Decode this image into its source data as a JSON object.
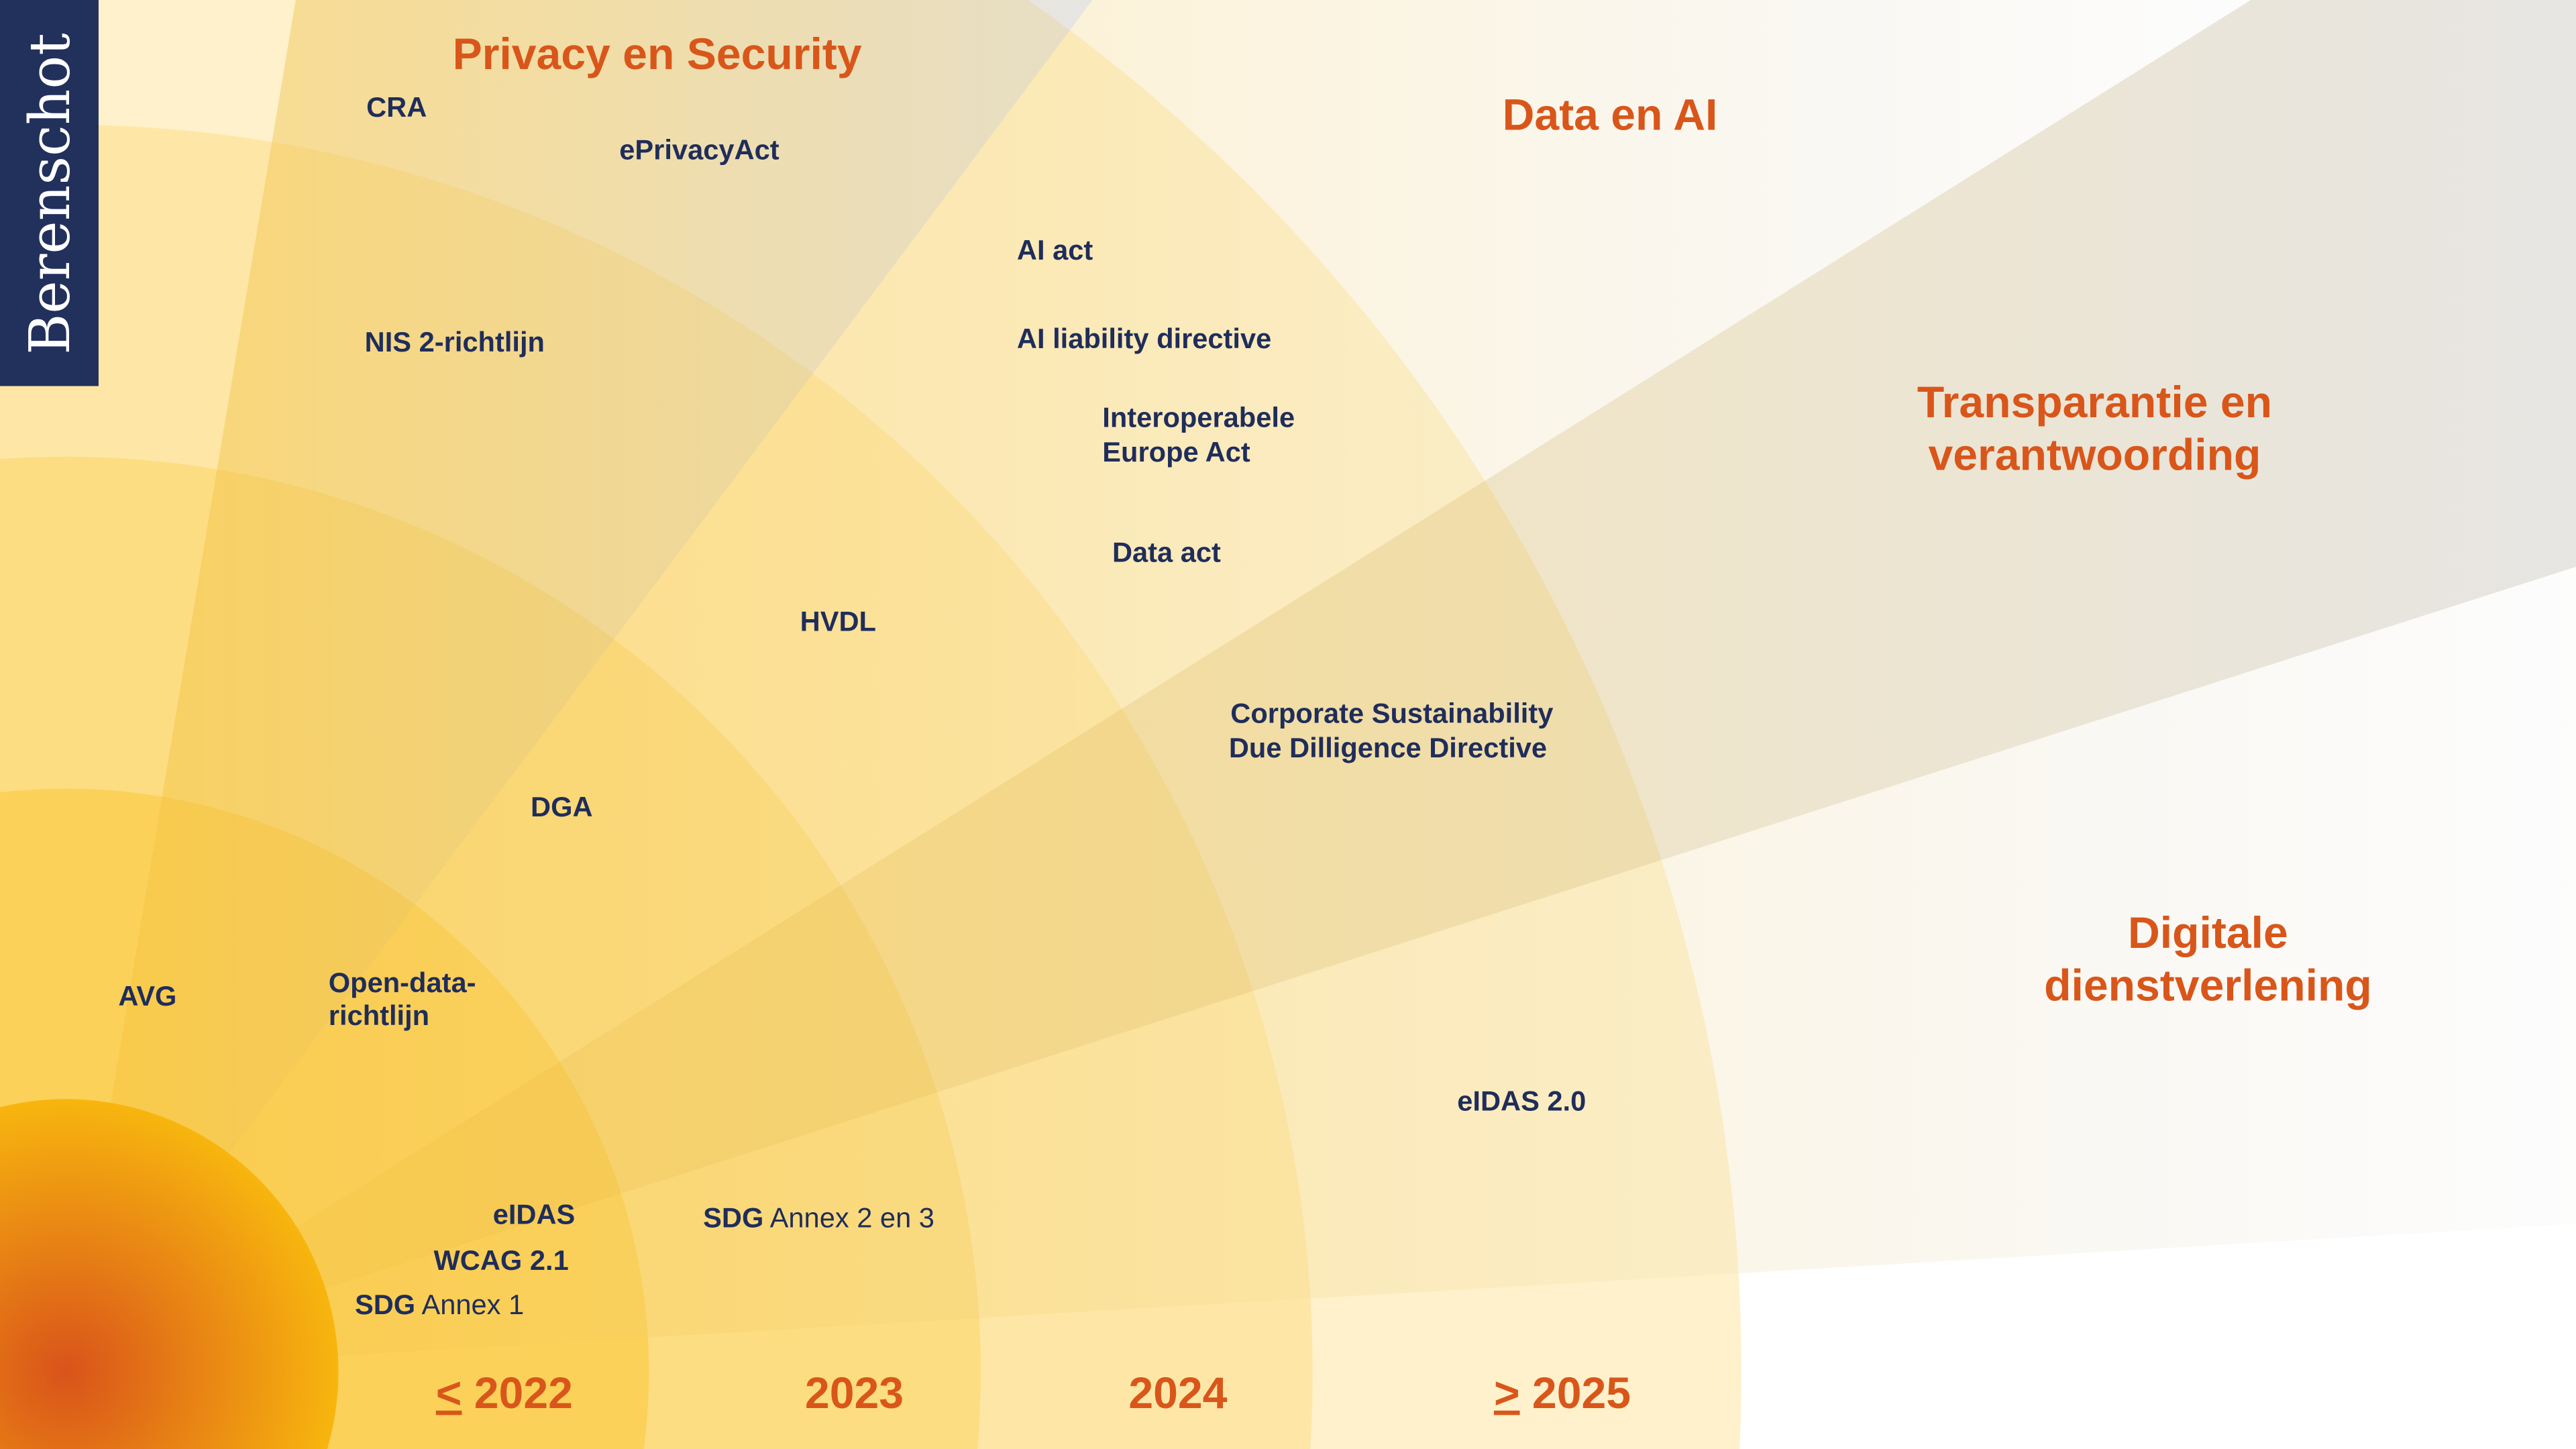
{
  "brand": {
    "name": "Berenschot",
    "color": "#22305C"
  },
  "colors": {
    "accent": "#D9561A",
    "label": "#1F2D5A",
    "ring": "#F9C62F",
    "core_center": "#D9531A",
    "core_edge": "#F8B80E"
  },
  "categories": {
    "privacy": "Privacy en Security",
    "data_ai": "Data en AI",
    "transparency_line1": "Transparantie en",
    "transparency_line2": "verantwoording",
    "digital_line1": "Digitale",
    "digital_line2": "dienstverlening"
  },
  "years": {
    "y2022_symbol": "<",
    "y2022": "2022",
    "y2023": "2023",
    "y2024": "2024",
    "y2025_symbol": ">",
    "y2025": "2025"
  },
  "items": {
    "cra": "CRA",
    "eprivacy": "ePrivacyAct",
    "nis2": "NIS 2-richtlijn",
    "ai_act": "AI act",
    "ai_liability": "AI liability directive",
    "interop_line1": "Interoperabele",
    "interop_line2": "Europe Act",
    "data_act": "Data act",
    "hvdl": "HVDL",
    "csddd_line1": "Corporate Sustainability",
    "csddd_line2": "Due Dilligence Directive",
    "dga": "DGA",
    "avg": "AVG",
    "opendata_line1": "Open-data-",
    "opendata_line2": "richtlijn",
    "eidas2": "eIDAS 2.0",
    "eidas": "eIDAS",
    "wcag": "WCAG 2.1",
    "sdg1_bold": "SDG",
    "sdg1_rest": " Annex 1",
    "sdg23_bold": "SDG",
    "sdg23_rest": " Annex 2 en 3"
  }
}
